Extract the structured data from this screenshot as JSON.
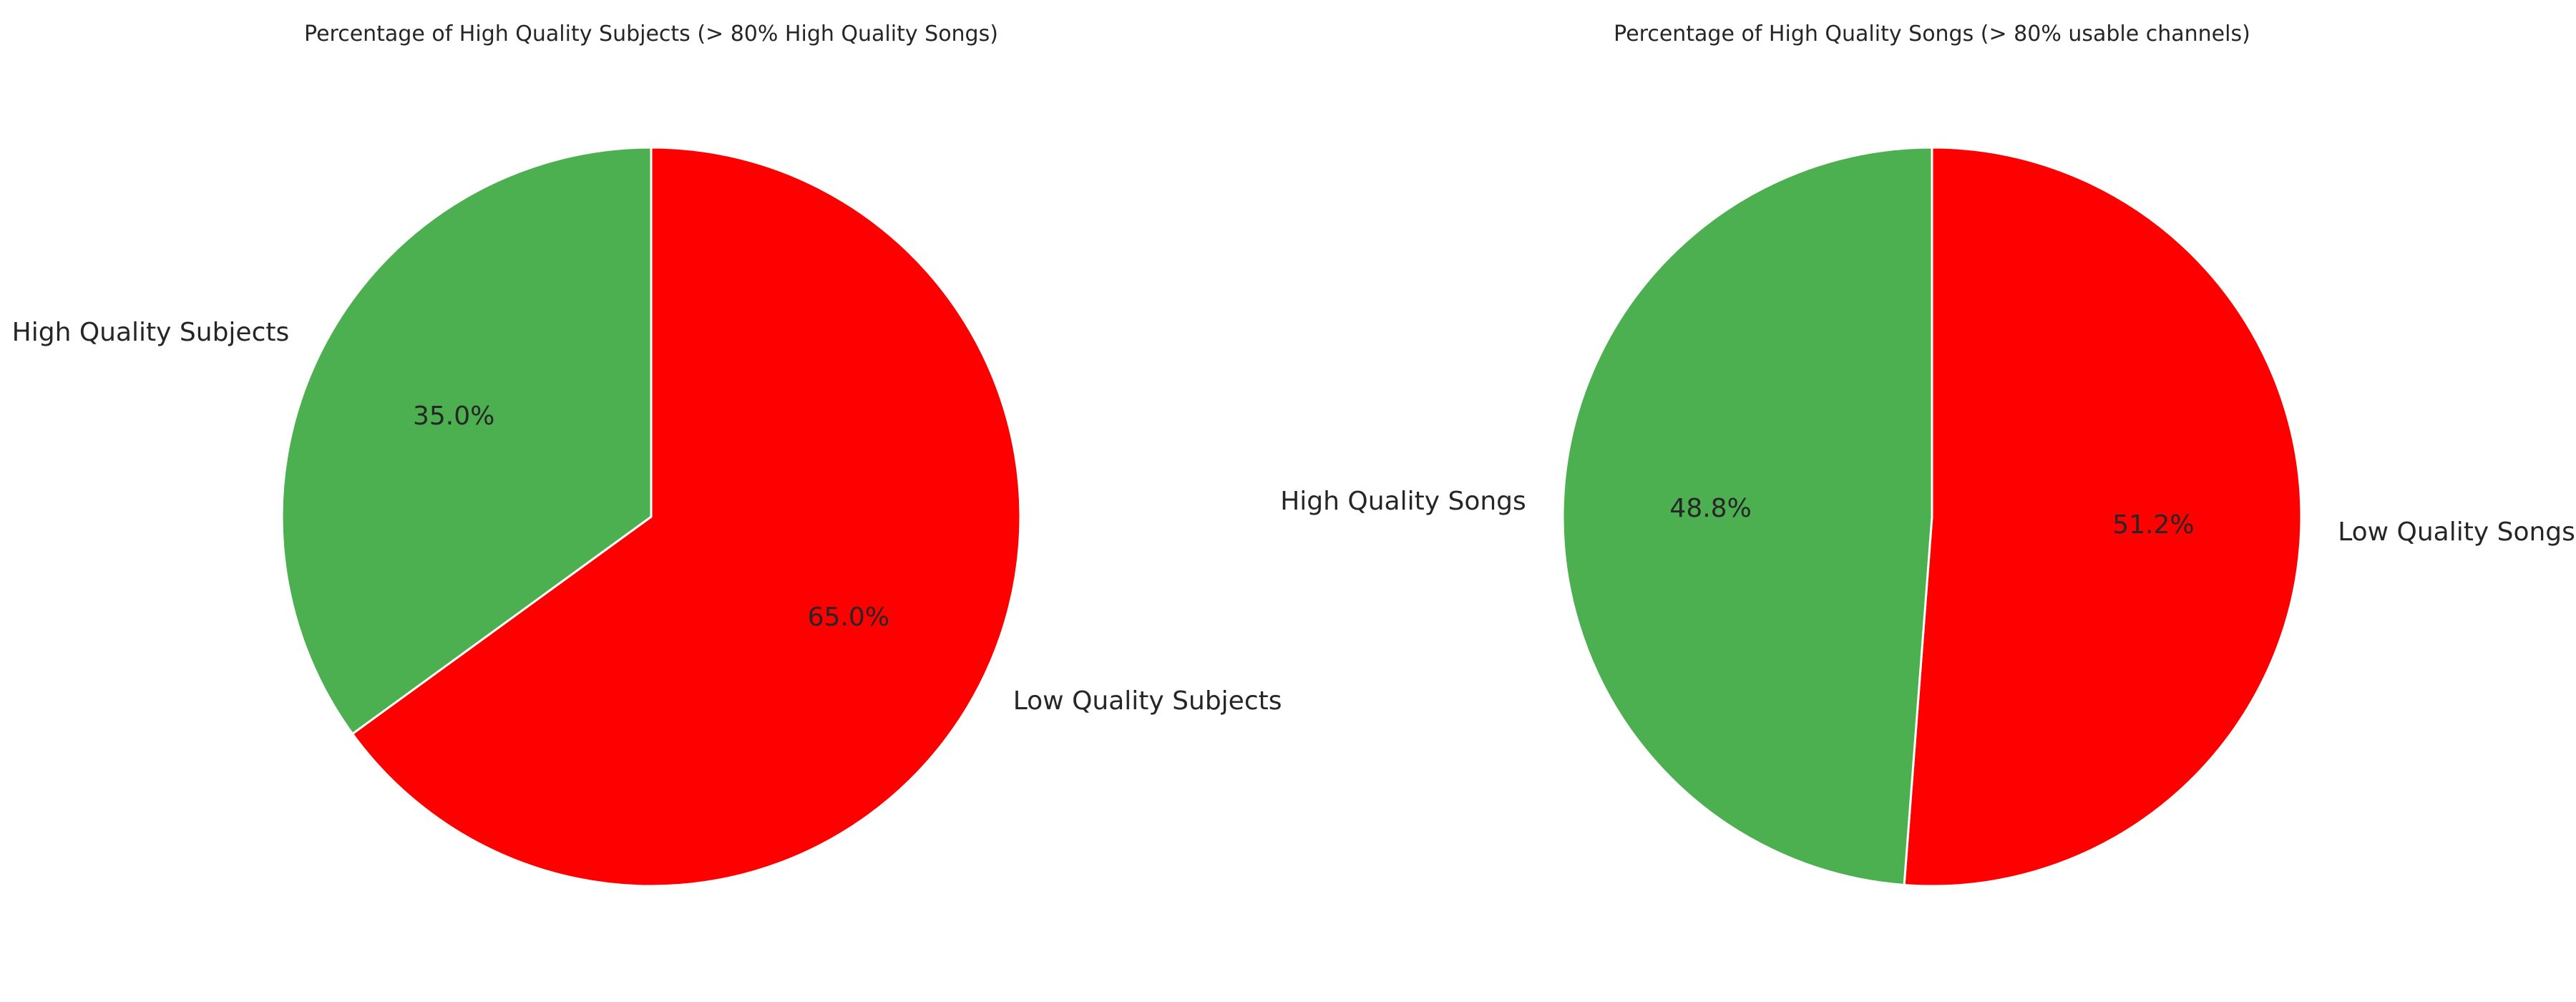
{
  "chart_data": [
    {
      "type": "pie",
      "title": "Percentage of High Quality Subjects (> 80% High Quality Songs)",
      "slices": [
        {
          "label": "High Quality Subjects",
          "value": 35.0,
          "pct_label": "35.0%",
          "color": "#4caf50"
        },
        {
          "label": "Low Quality Subjects",
          "value": 65.0,
          "pct_label": "65.0%",
          "color": "#ff0000"
        }
      ],
      "start_angle_deg": 90,
      "direction": "counterclockwise"
    },
    {
      "type": "pie",
      "title": "Percentage of High Quality Songs (> 80% usable channels)",
      "slices": [
        {
          "label": "High Quality Songs",
          "value": 48.8,
          "pct_label": "48.8%",
          "color": "#4caf50"
        },
        {
          "label": "Low Quality Songs",
          "value": 51.2,
          "pct_label": "51.2%",
          "color": "#ff0000"
        }
      ],
      "start_angle_deg": 90,
      "direction": "counterclockwise"
    }
  ]
}
